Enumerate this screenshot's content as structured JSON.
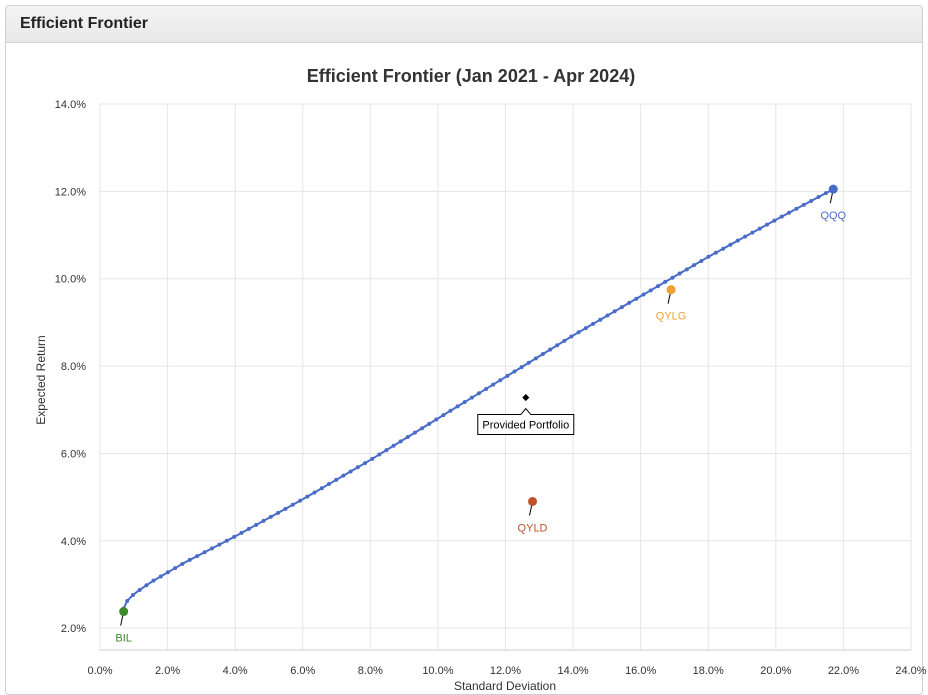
{
  "panel": {
    "title": "Efficient Frontier"
  },
  "chart_data": {
    "type": "scatter",
    "title": "Efficient Frontier (Jan 2021 - Apr 2024)",
    "xlabel": "Standard Deviation",
    "ylabel": "Expected Return",
    "xlim": [
      0,
      24
    ],
    "ylim": [
      1.5,
      14
    ],
    "x_ticks": [
      "0.0%",
      "2.0%",
      "4.0%",
      "6.0%",
      "8.0%",
      "10.0%",
      "12.0%",
      "14.0%",
      "16.0%",
      "18.0%",
      "20.0%",
      "22.0%",
      "24.0%"
    ],
    "y_ticks": [
      "2.0%",
      "4.0%",
      "6.0%",
      "8.0%",
      "10.0%",
      "12.0%",
      "14.0%"
    ],
    "grid": true,
    "frontier": {
      "color": "#4a6cc9",
      "points_count": 100,
      "x": [
        0.7,
        0.8,
        1.0,
        1.5,
        2.5,
        4.0,
        6.0,
        8.0,
        10.0,
        12.0,
        14.0,
        16.0,
        18.0,
        20.0,
        21.7
      ],
      "y": [
        2.45,
        2.62,
        2.78,
        3.05,
        3.5,
        4.1,
        4.95,
        5.85,
        6.8,
        7.75,
        8.7,
        9.6,
        10.5,
        11.35,
        12.05
      ]
    },
    "assets": [
      {
        "name": "QQQ",
        "x": 21.7,
        "y": 12.05,
        "color": "#4a6cc9"
      },
      {
        "name": "QYLG",
        "x": 16.9,
        "y": 9.75,
        "color": "#f0a030"
      },
      {
        "name": "QYLD",
        "x": 12.8,
        "y": 4.9,
        "color": "#c0502a"
      },
      {
        "name": "BIL",
        "x": 0.7,
        "y": 2.38,
        "color": "#3a8a2a"
      }
    ],
    "provided_portfolio": {
      "name": "Provided Portfolio",
      "x": 12.6,
      "y": 7.28
    }
  }
}
